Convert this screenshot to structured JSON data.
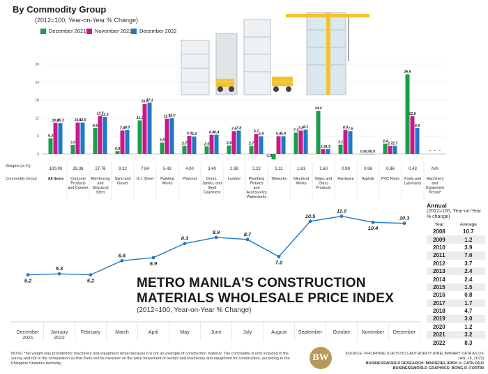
{
  "header": {
    "title": "By Commodity Group",
    "subtitle": "(2012=100, Year-on-Year % Change)"
  },
  "legend": [
    {
      "label": "December 2021",
      "color": "#1a9e4b"
    },
    {
      "label": "November 2022",
      "color": "#c8198a"
    },
    {
      "label": "December 2022",
      "color": "#1f78c8"
    }
  ],
  "row_labels": {
    "weights": "Weights (in %)",
    "commodity": "Commodity Group"
  },
  "chart_data": [
    {
      "type": "bar",
      "title": "By Commodity Group",
      "subtitle": "(2012=100, Year-on-Year % Change)",
      "ylim": [
        -3,
        30
      ],
      "yticks": [
        0,
        6,
        12,
        18,
        24,
        30
      ],
      "categories": [
        "All Items",
        "Concrete Products and Cement",
        "Reinforcing and Structural Steel",
        "Sand and Gravel",
        "G.I. Sheet",
        "Painting Works",
        "Plywood",
        "Doors, Jambs, and Steel Casement",
        "Lumber",
        "Plumbing Fixtures and Accessories Waterworks",
        "Tileworks",
        "Electrical Works",
        "Glass and Glass Products",
        "Hardware",
        "Asphalt",
        "PVC Pipes",
        "Fuels and Lubricants",
        "Machinery and Equipment Rental*"
      ],
      "weights": [
        "100.00",
        "28.38",
        "27.76",
        "9.22",
        "7.84",
        "5.43",
        "4.00",
        "3.40",
        "2.98",
        "2.22",
        "2.11",
        "1.81",
        "1.60",
        "0.99",
        "0.98",
        "0.86",
        "0.43",
        "N/A"
      ],
      "series": [
        {
          "name": "December 2021",
          "color": "#1a9e4b",
          "values": [
            5.2,
            3.0,
            8.6,
            0.9,
            11.2,
            3.8,
            2.7,
            2.5,
            2.8,
            2.7,
            -1.8,
            7.1,
            14.4,
            3.1,
            0.0,
            3.4,
            26.6,
            null
          ]
        },
        {
          "name": "November 2022",
          "color": "#c8198a",
          "values": [
            10.4,
            10.5,
            12.7,
            7.8,
            16.7,
            11.7,
            6.0,
            6.4,
            7.6,
            6.7,
            5.9,
            7.8,
            1.6,
            8.0,
            0.0,
            2.7,
            12.6,
            null
          ]
        },
        {
          "name": "December 2022",
          "color": "#1f78c8",
          "values": [
            10.3,
            10.5,
            12.3,
            8.0,
            17.1,
            12.0,
            5.8,
            6.4,
            7.8,
            5.9,
            5.9,
            8.1,
            1.6,
            7.6,
            0.0,
            2.7,
            8.6,
            null
          ]
        }
      ],
      "value_labels": [
        [
          "5.2",
          "10.4",
          "10.3"
        ],
        [
          "3.0",
          "10.5",
          "10.5"
        ],
        [
          "8.6",
          "12.7",
          "12.3"
        ],
        [
          "0.9",
          "7.8",
          "8.0"
        ],
        [
          "11.2",
          "16.7",
          "17.1"
        ],
        [
          "3.8",
          "11.7",
          "12.0"
        ],
        [
          "2.7",
          "6.0",
          "5.8"
        ],
        [
          "2.5",
          "6.4",
          "6.4"
        ],
        [
          "2.8",
          "7.6",
          "7.8"
        ],
        [
          "2.7",
          "6.7",
          "5.9"
        ],
        [
          "-1.8",
          "5.9",
          "5.9"
        ],
        [
          "7.1",
          "7.8",
          "8.1"
        ],
        [
          "14.4",
          "1.6",
          "1.6"
        ],
        [
          "3.1",
          "8.0",
          "7.6"
        ],
        [
          "0.0",
          "0.0",
          "0.0"
        ],
        [
          "3.4",
          "2.7",
          "2.7"
        ],
        [
          "26.6",
          "12.6",
          "8.6"
        ],
        [
          "–",
          "–",
          "–"
        ]
      ]
    },
    {
      "type": "line",
      "title": "METRO MANILA'S CONSTRUCTION MATERIALS WHOLESALE PRICE INDEX",
      "subtitle": "(2012=100, Year-on-Year % Change)",
      "categories": [
        "December 2021",
        "January 2022",
        "February",
        "March",
        "April",
        "May",
        "June",
        "July",
        "August",
        "September",
        "October",
        "November",
        "December"
      ],
      "series": [
        {
          "name": "",
          "color": "#1f78c8",
          "values": [
            5.2,
            5.3,
            5.2,
            6.6,
            6.9,
            8.3,
            8.9,
            8.7,
            7.0,
            10.5,
            11.0,
            10.4,
            10.3
          ]
        }
      ],
      "value_labels": [
        "5.2",
        "5.3",
        "5.2",
        "6.6",
        "6.9",
        "8.3",
        "8.9",
        "8.7",
        "7.0",
        "10.5",
        "11.0",
        "10.4",
        "10.3"
      ],
      "ylim": [
        4,
        12
      ]
    }
  ],
  "line_title": {
    "line1": "METRO MANILA'S CONSTRUCTION",
    "line2": "MATERIALS WHOLESALE PRICE INDEX",
    "subtitle": "(2012=100, Year-on-Year % Change)"
  },
  "annual": {
    "title": "Annual",
    "subtitle": "(2012=100, Year-on-Year % change)",
    "col_year": "Year",
    "col_avg": "Average",
    "rows": [
      [
        "2008",
        "10.7"
      ],
      [
        "2009",
        "1.2"
      ],
      [
        "2010",
        "3.9"
      ],
      [
        "2011",
        "7.6"
      ],
      [
        "2012",
        "3.7"
      ],
      [
        "2013",
        "2.4"
      ],
      [
        "2014",
        "2.4"
      ],
      [
        "2015",
        "1.5"
      ],
      [
        "2016",
        "0.8"
      ],
      [
        "2017",
        "1.7"
      ],
      [
        "2018",
        "4.7"
      ],
      [
        "2019",
        "3.0"
      ],
      [
        "2020",
        "1.2"
      ],
      [
        "2021",
        "3.2"
      ],
      [
        "2022",
        "8.3"
      ]
    ]
  },
  "footer": {
    "note": "NOTE: *No weight was provided for machinery and equipment rental because it is not an example of construction material. The commodity is only included in the survey and not in the computation so that there will be measure on the price movement of rentals and machinery and equipment for construction, according to the Philippine Statistics Authority.",
    "source_line1": "SOURCE: PHILIPPINE STATISTICS AUTHORITY (PRELIMINARY DATA AS OF JAN. 18, 2023)",
    "source_line2": "BUSINESSWORLD RESEARCH: MARIEDEL IRISH U. CATILOGO",
    "source_line3": "BUSINESSWORLD GRAPHICS: BONG R. FORTIN",
    "logo_text": "BW"
  }
}
